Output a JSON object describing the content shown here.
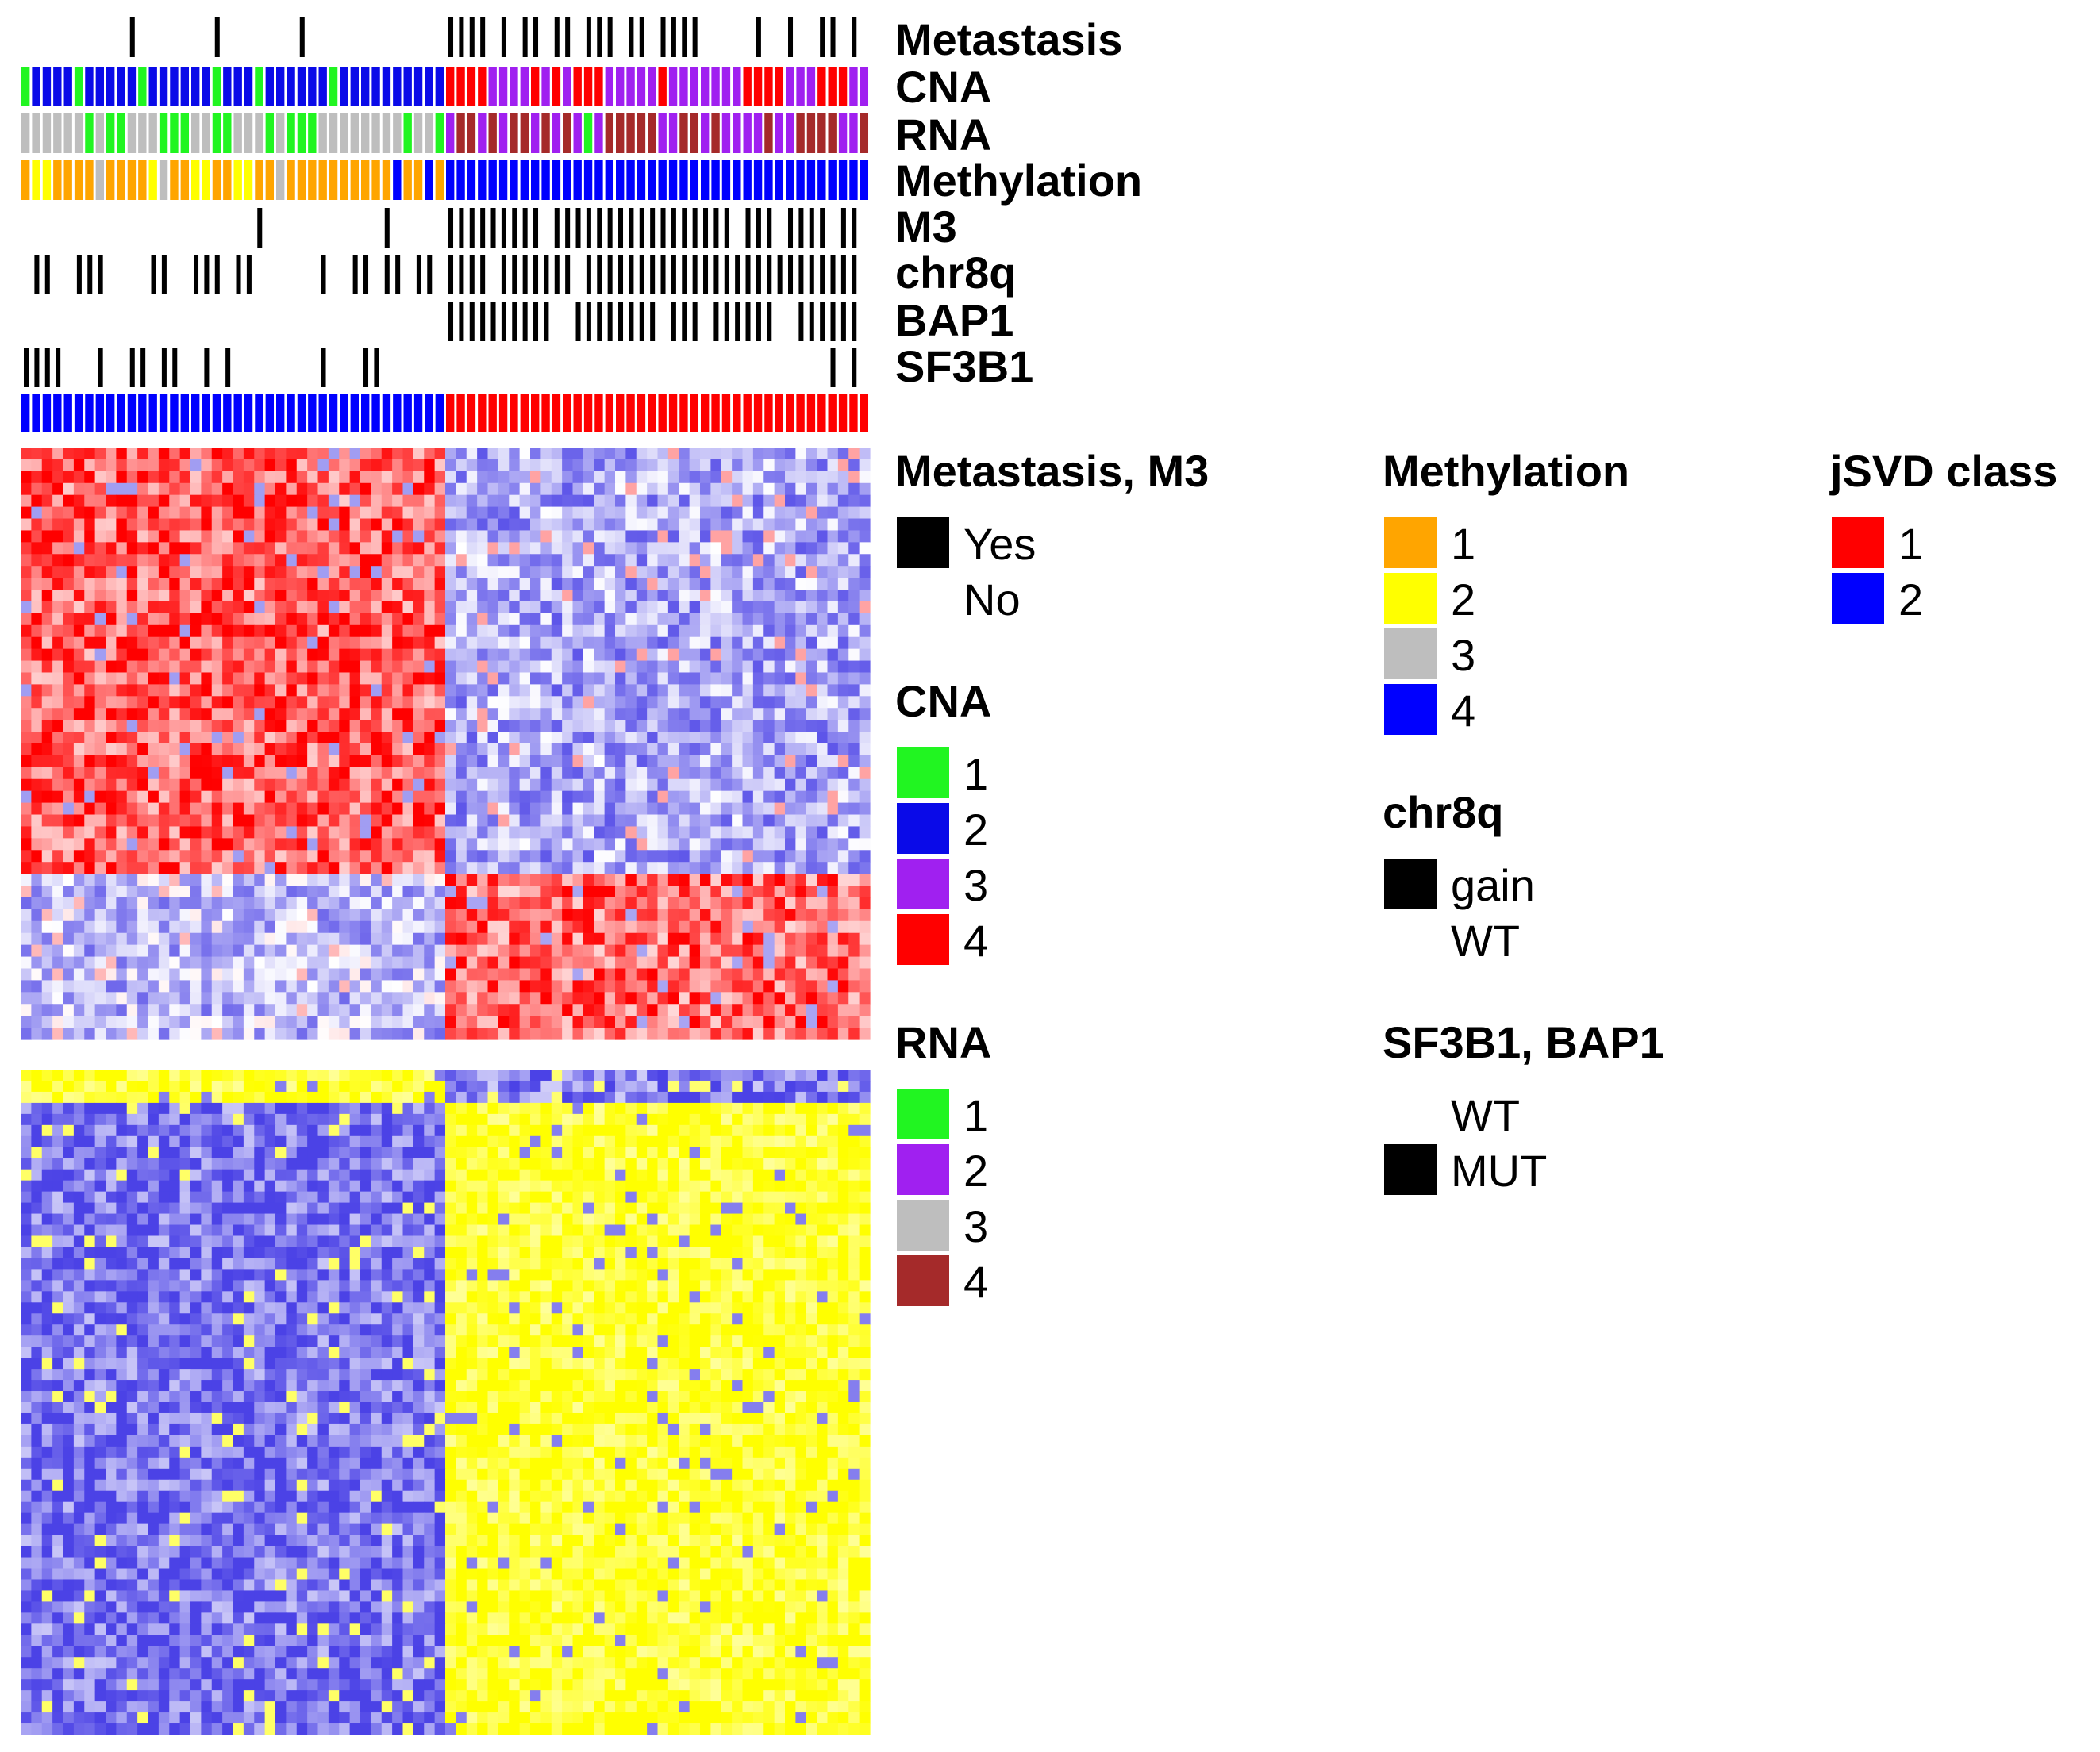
{
  "colors": {
    "black": "#000000",
    "cna": {
      "1": "#21f521",
      "2": "#0a0ae8",
      "3": "#a020f0",
      "4": "#ff0000"
    },
    "rna": {
      "1": "#21f521",
      "2": "#a020f0",
      "3": "#bebebe",
      "4": "#a52a2a"
    },
    "methylation": {
      "1": "#ffa500",
      "2": "#ffff00",
      "3": "#bebebe",
      "4": "#0000ff"
    },
    "jsvd": {
      "1": "#ff0000",
      "2": "#0000ff"
    },
    "heat_low": "#4b42e6",
    "heat_mid": "#ffffff",
    "heat_high_top": "#ff0000",
    "heat_high_bottom": "#ffff00"
  },
  "annotation_tracks": [
    {
      "key": "metastasis",
      "label": "Metastasis"
    },
    {
      "key": "cna",
      "label": "CNA"
    },
    {
      "key": "rna",
      "label": "RNA"
    },
    {
      "key": "methylation",
      "label": "Methylation"
    },
    {
      "key": "m3",
      "label": "M3"
    },
    {
      "key": "chr8q",
      "label": "chr8q"
    },
    {
      "key": "bap1",
      "label": "BAP1"
    },
    {
      "key": "sf3b1",
      "label": "SF3B1"
    },
    {
      "key": "jsvd",
      "label": ""
    }
  ],
  "legends": {
    "metastasis_m3": {
      "title": "Metastasis, M3",
      "items": [
        {
          "label": "Yes",
          "color": "#000000"
        },
        {
          "label": "No",
          "color": "none"
        }
      ]
    },
    "cna": {
      "title": "CNA",
      "items": [
        {
          "label": "1",
          "color": "#21f521"
        },
        {
          "label": "2",
          "color": "#0a0ae8"
        },
        {
          "label": "3",
          "color": "#a020f0"
        },
        {
          "label": "4",
          "color": "#ff0000"
        }
      ]
    },
    "rna": {
      "title": "RNA",
      "items": [
        {
          "label": "1",
          "color": "#21f521"
        },
        {
          "label": "2",
          "color": "#a020f0"
        },
        {
          "label": "3",
          "color": "#bebebe"
        },
        {
          "label": "4",
          "color": "#a52a2a"
        }
      ]
    },
    "methylation": {
      "title": "Methylation",
      "items": [
        {
          "label": "1",
          "color": "#ffa500"
        },
        {
          "label": "2",
          "color": "#ffff00"
        },
        {
          "label": "3",
          "color": "#bebebe"
        },
        {
          "label": "4",
          "color": "#0000ff"
        }
      ]
    },
    "chr8q": {
      "title": "chr8q",
      "items": [
        {
          "label": "gain",
          "color": "#000000"
        },
        {
          "label": "WT",
          "color": "none"
        }
      ]
    },
    "sf3b1_bap1": {
      "title": "SF3B1, BAP1",
      "items": [
        {
          "label": "WT",
          "color": "none"
        },
        {
          "label": "MUT",
          "color": "#000000"
        }
      ]
    },
    "jsvd": {
      "title": "jSVD class",
      "items": [
        {
          "label": "1",
          "color": "#ff0000"
        },
        {
          "label": "2",
          "color": "#0000ff"
        }
      ]
    }
  },
  "chart_data": {
    "type": "heatmap",
    "title": "",
    "n_samples": 80,
    "class2_count": 40,
    "class1_count": 40,
    "sample_groups": {
      "left": "jSVD class 2",
      "right": "jSVD class 1"
    },
    "annotations": {
      "metastasis": [
        0,
        0,
        0,
        0,
        0,
        0,
        0,
        0,
        0,
        0,
        1,
        0,
        0,
        0,
        0,
        0,
        0,
        0,
        1,
        0,
        0,
        0,
        0,
        0,
        0,
        0,
        1,
        0,
        0,
        0,
        0,
        0,
        0,
        0,
        0,
        0,
        0,
        0,
        0,
        0,
        1,
        1,
        1,
        1,
        0,
        1,
        0,
        1,
        1,
        0,
        1,
        1,
        0,
        1,
        1,
        1,
        0,
        1,
        1,
        0,
        1,
        1,
        1,
        1,
        0,
        0,
        0,
        0,
        0,
        1,
        0,
        0,
        1,
        0,
        0,
        1,
        1,
        0,
        1,
        0
      ],
      "m3": [
        0,
        0,
        0,
        0,
        0,
        0,
        0,
        0,
        0,
        0,
        0,
        0,
        0,
        0,
        0,
        0,
        0,
        0,
        0,
        0,
        0,
        0,
        1,
        0,
        0,
        0,
        0,
        0,
        0,
        0,
        0,
        0,
        0,
        0,
        1,
        0,
        0,
        0,
        0,
        0,
        1,
        1,
        1,
        1,
        1,
        1,
        1,
        1,
        1,
        0,
        1,
        1,
        1,
        1,
        1,
        1,
        1,
        1,
        1,
        1,
        1,
        1,
        1,
        1,
        1,
        1,
        1,
        0,
        1,
        1,
        1,
        0,
        1,
        1,
        1,
        1,
        0,
        1,
        1,
        0
      ],
      "chr8q": [
        0,
        1,
        1,
        0,
        0,
        1,
        1,
        1,
        0,
        0,
        0,
        0,
        1,
        1,
        0,
        0,
        1,
        1,
        1,
        0,
        1,
        1,
        0,
        0,
        0,
        0,
        0,
        0,
        1,
        0,
        0,
        1,
        1,
        0,
        1,
        1,
        0,
        1,
        1,
        0,
        1,
        1,
        1,
        1,
        0,
        1,
        1,
        1,
        1,
        1,
        1,
        1,
        0,
        1,
        1,
        1,
        1,
        1,
        1,
        1,
        1,
        1,
        1,
        1,
        1,
        1,
        1,
        1,
        1,
        1,
        1,
        1,
        1,
        1,
        1,
        1,
        1,
        1,
        1,
        0
      ],
      "bap1": [
        0,
        0,
        0,
        0,
        0,
        0,
        0,
        0,
        0,
        0,
        0,
        0,
        0,
        0,
        0,
        0,
        0,
        0,
        0,
        0,
        0,
        0,
        0,
        0,
        0,
        0,
        0,
        0,
        0,
        0,
        0,
        0,
        0,
        0,
        0,
        0,
        0,
        0,
        0,
        0,
        1,
        1,
        1,
        1,
        1,
        1,
        1,
        1,
        1,
        1,
        0,
        0,
        1,
        1,
        1,
        1,
        1,
        1,
        1,
        1,
        0,
        1,
        1,
        1,
        0,
        1,
        1,
        1,
        1,
        1,
        1,
        0,
        0,
        1,
        1,
        1,
        1,
        1,
        1,
        0
      ],
      "sf3b1": [
        1,
        1,
        1,
        1,
        0,
        0,
        0,
        1,
        0,
        0,
        1,
        1,
        0,
        1,
        1,
        0,
        0,
        1,
        0,
        1,
        0,
        0,
        0,
        0,
        0,
        0,
        0,
        0,
        1,
        0,
        0,
        0,
        1,
        1,
        0,
        0,
        0,
        0,
        0,
        0,
        0,
        0,
        0,
        0,
        0,
        0,
        0,
        0,
        0,
        0,
        0,
        0,
        0,
        0,
        0,
        0,
        0,
        0,
        0,
        0,
        0,
        0,
        0,
        0,
        0,
        0,
        0,
        0,
        0,
        0,
        0,
        0,
        0,
        0,
        0,
        0,
        1,
        0,
        1,
        0
      ],
      "cna": [
        1,
        2,
        2,
        2,
        2,
        1,
        2,
        2,
        2,
        2,
        2,
        1,
        2,
        2,
        2,
        2,
        2,
        2,
        1,
        2,
        2,
        2,
        1,
        2,
        2,
        2,
        2,
        2,
        2,
        1,
        2,
        2,
        2,
        2,
        2,
        2,
        2,
        2,
        2,
        2,
        4,
        4,
        4,
        4,
        3,
        3,
        3,
        3,
        4,
        3,
        4,
        3,
        4,
        4,
        4,
        3,
        3,
        3,
        3,
        3,
        4,
        3,
        3,
        3,
        3,
        3,
        3,
        3,
        4,
        4,
        4,
        4,
        3,
        3,
        3,
        4,
        4,
        4,
        3,
        3
      ],
      "rna": [
        3,
        3,
        3,
        3,
        3,
        3,
        1,
        3,
        1,
        1,
        3,
        3,
        3,
        1,
        1,
        1,
        3,
        3,
        1,
        1,
        3,
        3,
        3,
        1,
        3,
        1,
        1,
        1,
        3,
        3,
        3,
        3,
        3,
        3,
        3,
        3,
        1,
        3,
        3,
        1,
        2,
        4,
        4,
        2,
        4,
        2,
        4,
        4,
        2,
        4,
        2,
        4,
        2,
        1,
        2,
        4,
        4,
        4,
        4,
        4,
        2,
        2,
        4,
        4,
        2,
        4,
        2,
        2,
        2,
        2,
        4,
        2,
        2,
        4,
        4,
        4,
        4,
        2,
        2,
        4
      ],
      "methylation": [
        1,
        2,
        2,
        1,
        1,
        1,
        1,
        3,
        1,
        1,
        1,
        1,
        2,
        3,
        1,
        1,
        2,
        2,
        1,
        1,
        2,
        2,
        1,
        1,
        3,
        1,
        1,
        1,
        1,
        1,
        1,
        1,
        1,
        1,
        1,
        4,
        1,
        1,
        4,
        1,
        4,
        4,
        4,
        4,
        4,
        4,
        4,
        4,
        4,
        4,
        4,
        4,
        4,
        4,
        4,
        4,
        4,
        4,
        4,
        4,
        4,
        4,
        4,
        4,
        4,
        4,
        4,
        4,
        4,
        4,
        4,
        4,
        4,
        4,
        4,
        4,
        4,
        4,
        4,
        4
      ],
      "jsvd": [
        2,
        2,
        2,
        2,
        2,
        2,
        2,
        2,
        2,
        2,
        2,
        2,
        2,
        2,
        2,
        2,
        2,
        2,
        2,
        2,
        2,
        2,
        2,
        2,
        2,
        2,
        2,
        2,
        2,
        2,
        2,
        2,
        2,
        2,
        2,
        2,
        2,
        2,
        2,
        2,
        1,
        1,
        1,
        1,
        1,
        1,
        1,
        1,
        1,
        1,
        1,
        1,
        1,
        1,
        1,
        1,
        1,
        1,
        1,
        1,
        1,
        1,
        1,
        1,
        1,
        1,
        1,
        1,
        1,
        1,
        1,
        1,
        1,
        1,
        1,
        1,
        1,
        1,
        1,
        1
      ]
    },
    "heatmaps": [
      {
        "name": "upper",
        "rows": 50,
        "low_color": "#4b42e6",
        "high_color": "#ff0000",
        "row_blocks": [
          {
            "rows": [
              0,
              35
            ],
            "left_level": 0.65,
            "right_level": -0.45
          },
          {
            "rows": [
              36,
              49
            ],
            "left_level": -0.35,
            "right_level": 0.6
          }
        ]
      },
      {
        "name": "lower",
        "rows": 60,
        "low_color": "#4b42e6",
        "high_color": "#ffff00",
        "row_blocks": [
          {
            "rows": [
              0,
              2
            ],
            "left_level": 0.85,
            "right_level": -0.7
          },
          {
            "rows": [
              3,
              59
            ],
            "left_level": -0.75,
            "right_level": 0.85
          }
        ]
      }
    ]
  }
}
